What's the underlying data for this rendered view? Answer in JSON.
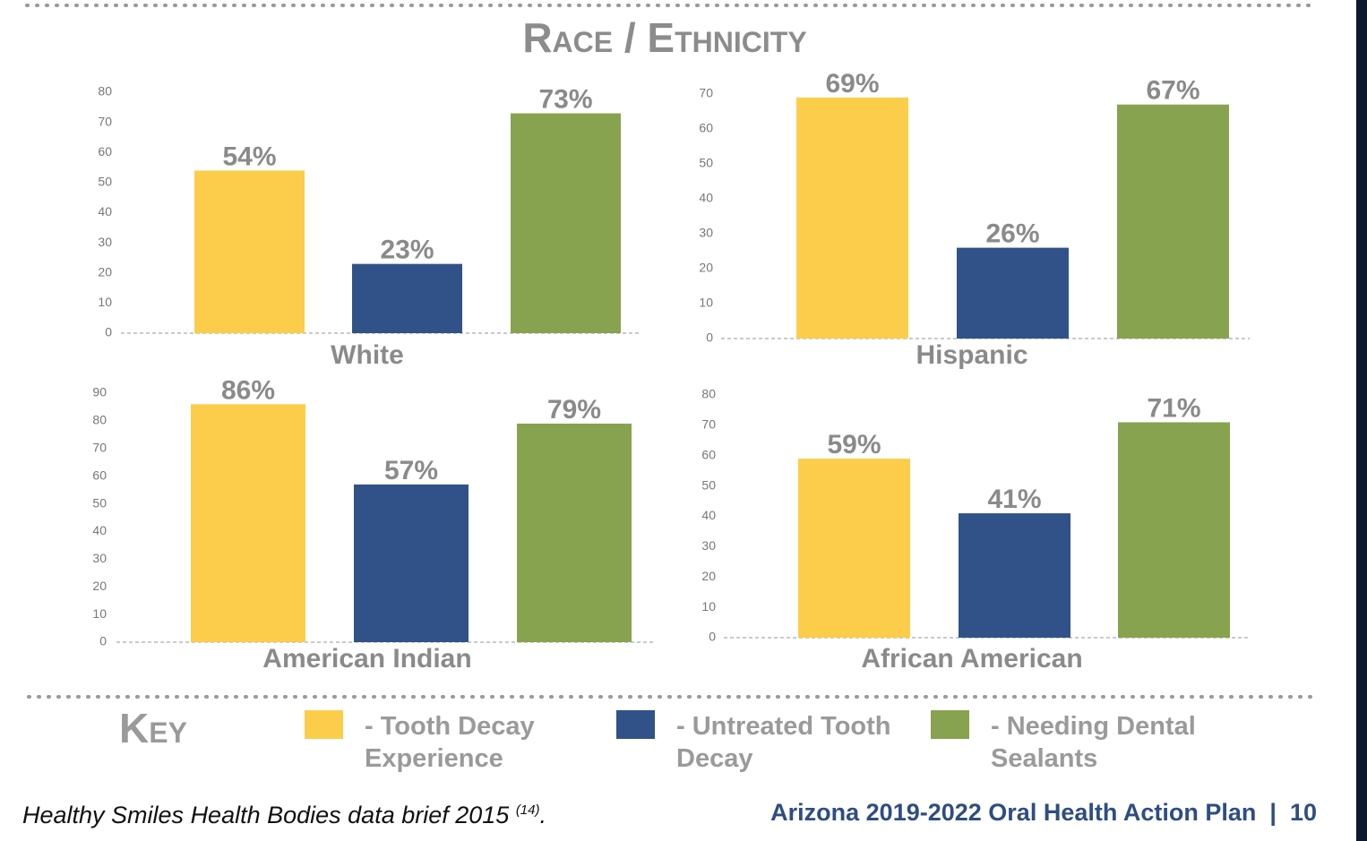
{
  "title": "Race / Ethnicity",
  "chart_data": [
    {
      "type": "bar",
      "xlabel": "White",
      "categories": [
        null,
        null,
        null
      ],
      "values": [
        54,
        23,
        73
      ],
      "value_labels": [
        "54%",
        "23%",
        "73%"
      ],
      "colors": [
        "#fccd4a",
        "#305289",
        "#87a34f"
      ],
      "ylim": [
        0,
        80
      ],
      "yticks": [
        0,
        10,
        20,
        30,
        40,
        50,
        60,
        70,
        80
      ]
    },
    {
      "type": "bar",
      "xlabel": "Hispanic",
      "categories": [
        null,
        null,
        null
      ],
      "values": [
        69,
        26,
        67
      ],
      "value_labels": [
        "69%",
        "26%",
        "67%"
      ],
      "colors": [
        "#fccd4a",
        "#305289",
        "#87a34f"
      ],
      "ylim": [
        0,
        70
      ],
      "yticks": [
        0,
        10,
        20,
        30,
        40,
        50,
        60,
        70
      ]
    },
    {
      "type": "bar",
      "xlabel": "American Indian",
      "categories": [
        null,
        null,
        null
      ],
      "values": [
        86,
        57,
        79
      ],
      "value_labels": [
        "86%",
        "57%",
        "79%"
      ],
      "colors": [
        "#fccd4a",
        "#305289",
        "#87a34f"
      ],
      "ylim": [
        0,
        90
      ],
      "yticks": [
        0,
        10,
        20,
        30,
        40,
        50,
        60,
        70,
        80,
        90
      ]
    },
    {
      "type": "bar",
      "xlabel": "African American",
      "categories": [
        null,
        null,
        null
      ],
      "values": [
        59,
        41,
        71
      ],
      "value_labels": [
        "59%",
        "41%",
        "71%"
      ],
      "colors": [
        "#fccd4a",
        "#305289",
        "#87a34f"
      ],
      "ylim": [
        0,
        80
      ],
      "yticks": [
        0,
        10,
        20,
        30,
        40,
        50,
        60,
        70,
        80
      ]
    }
  ],
  "key": {
    "title": "Key",
    "items": [
      {
        "label": "- Tooth Decay Experience",
        "color": "#fccd4a"
      },
      {
        "label": "- Untreated Tooth Decay",
        "color": "#305289"
      },
      {
        "label": "- Needing Dental Sealants",
        "color": "#87a34f"
      }
    ]
  },
  "footer": {
    "source": "Healthy Smiles Health Bodies data brief 2015 ",
    "source_ref": "(14)",
    "source_end": ".",
    "publication": "Arizona 2019-2022 Oral Health Action Plan",
    "separator": "|",
    "page": 10
  }
}
